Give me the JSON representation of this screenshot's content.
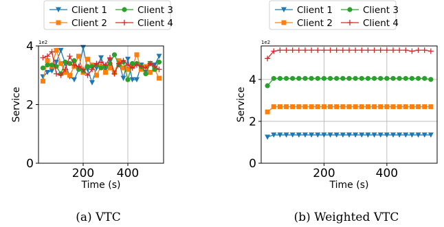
{
  "chart_data": [
    {
      "type": "line",
      "caption": "(a) VTC",
      "xlabel": "Time (s)",
      "ylabel": "Service",
      "y_multiplier": "1e2",
      "xlim": [
        0,
        560
      ],
      "ylim": [
        0,
        4
      ],
      "xticks": [
        200,
        400
      ],
      "yticks": [
        0,
        2,
        4
      ],
      "grid": true,
      "legend_position": "top",
      "x": [
        20,
        40,
        60,
        80,
        100,
        120,
        140,
        160,
        180,
        200,
        220,
        240,
        260,
        280,
        300,
        320,
        340,
        360,
        380,
        400,
        420,
        440,
        460,
        480,
        500,
        520,
        540
      ],
      "series": [
        {
          "name": "Client 1",
          "color": "#1f77b4",
          "marker": "triangle-down",
          "values": [
            2.95,
            3.1,
            3.15,
            3.45,
            3.85,
            3.4,
            2.95,
            2.85,
            3.2,
            3.95,
            3.2,
            2.75,
            3.25,
            3.6,
            3.2,
            3.5,
            3.05,
            3.45,
            2.9,
            3.55,
            2.85,
            2.85,
            3.35,
            3.1,
            3.4,
            3.35,
            3.65
          ]
        },
        {
          "name": "Client 2",
          "color": "#ff7f0e",
          "marker": "square",
          "values": [
            2.8,
            3.5,
            3.3,
            3.85,
            3.4,
            3.1,
            3.0,
            3.3,
            3.65,
            3.1,
            3.55,
            3.35,
            3.0,
            3.3,
            3.1,
            3.25,
            3.1,
            3.5,
            3.25,
            3.2,
            3.3,
            3.7,
            3.2,
            3.3,
            3.1,
            3.2,
            2.9
          ]
        },
        {
          "name": "Client 3",
          "color": "#2ca02c",
          "marker": "circle",
          "values": [
            3.25,
            3.35,
            3.35,
            3.3,
            3.05,
            3.45,
            3.4,
            3.5,
            3.2,
            3.15,
            3.3,
            3.3,
            3.35,
            3.25,
            3.3,
            3.4,
            3.7,
            3.35,
            3.45,
            2.85,
            3.4,
            3.4,
            3.3,
            3.05,
            3.4,
            3.2,
            3.45
          ]
        },
        {
          "name": "Client 4",
          "color": "#d62728",
          "marker": "plus",
          "values": [
            3.6,
            3.65,
            3.8,
            3.05,
            3.0,
            3.2,
            3.65,
            3.35,
            3.3,
            3.2,
            3.0,
            3.2,
            3.4,
            3.45,
            3.35,
            3.6,
            3.05,
            3.4,
            3.5,
            3.35,
            3.25,
            3.35,
            3.3,
            3.25,
            3.4,
            3.3,
            3.2
          ]
        }
      ]
    },
    {
      "type": "line",
      "caption": "(b) Weighted VTC",
      "xlabel": "Time (s)",
      "ylabel": "Service",
      "y_multiplier": "1e2",
      "xlim": [
        0,
        560
      ],
      "ylim": [
        0,
        5.6
      ],
      "xticks": [
        200,
        400
      ],
      "yticks": [
        0,
        2,
        4
      ],
      "grid": true,
      "legend_position": "top",
      "x": [
        20,
        40,
        60,
        80,
        100,
        120,
        140,
        160,
        180,
        200,
        220,
        240,
        260,
        280,
        300,
        320,
        340,
        360,
        380,
        400,
        420,
        440,
        460,
        480,
        500,
        520,
        540
      ],
      "series": [
        {
          "name": "Client 1",
          "color": "#1f77b4",
          "marker": "triangle-down",
          "values": [
            1.25,
            1.35,
            1.35,
            1.35,
            1.35,
            1.35,
            1.35,
            1.35,
            1.35,
            1.35,
            1.35,
            1.35,
            1.35,
            1.35,
            1.35,
            1.35,
            1.35,
            1.35,
            1.35,
            1.35,
            1.35,
            1.35,
            1.35,
            1.35,
            1.35,
            1.35,
            1.35
          ]
        },
        {
          "name": "Client 2",
          "color": "#ff7f0e",
          "marker": "square",
          "values": [
            2.45,
            2.7,
            2.7,
            2.7,
            2.7,
            2.7,
            2.7,
            2.7,
            2.7,
            2.7,
            2.7,
            2.7,
            2.7,
            2.7,
            2.7,
            2.7,
            2.7,
            2.7,
            2.7,
            2.7,
            2.7,
            2.7,
            2.7,
            2.7,
            2.7,
            2.7,
            2.7
          ]
        },
        {
          "name": "Client 3",
          "color": "#2ca02c",
          "marker": "circle",
          "values": [
            3.7,
            4.05,
            4.05,
            4.05,
            4.05,
            4.05,
            4.05,
            4.05,
            4.05,
            4.05,
            4.05,
            4.05,
            4.05,
            4.05,
            4.05,
            4.05,
            4.05,
            4.05,
            4.05,
            4.05,
            4.05,
            4.05,
            4.05,
            4.05,
            4.05,
            4.05,
            4.0
          ]
        },
        {
          "name": "Client 4",
          "color": "#d62728",
          "marker": "plus",
          "values": [
            5.0,
            5.35,
            5.4,
            5.4,
            5.4,
            5.4,
            5.4,
            5.4,
            5.4,
            5.4,
            5.4,
            5.4,
            5.4,
            5.4,
            5.4,
            5.4,
            5.4,
            5.4,
            5.4,
            5.4,
            5.4,
            5.4,
            5.4,
            5.35,
            5.4,
            5.4,
            5.35
          ]
        }
      ]
    }
  ]
}
